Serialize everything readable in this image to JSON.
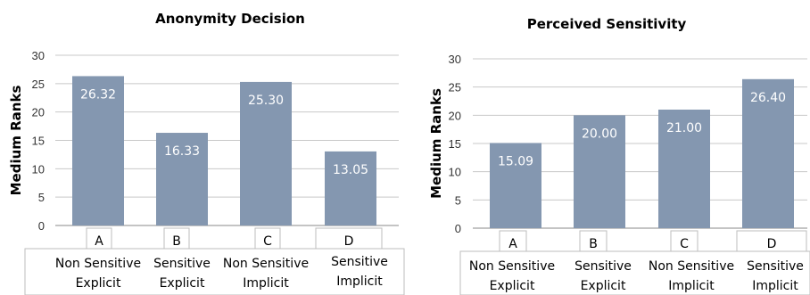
{
  "chart_data": [
    {
      "type": "bar",
      "title": "Anonymity Decision",
      "xlabel": "",
      "ylabel": "Medium Ranks",
      "ylim": [
        0,
        30
      ],
      "yticks": [
        0,
        5,
        10,
        15,
        20,
        25,
        30
      ],
      "grid": true,
      "categories": [
        {
          "letter": "A",
          "line1": "Non Sensitive",
          "line2": "Explicit"
        },
        {
          "letter": "B",
          "line1": "Sensitive",
          "line2": "Explicit"
        },
        {
          "letter": "C",
          "line1": "Non Sensitive",
          "line2": "Implicit"
        },
        {
          "letter": "D",
          "line1": "Sensitive",
          "line2": "Implicit"
        }
      ],
      "values": [
        26.32,
        16.33,
        25.3,
        13.05
      ],
      "value_labels": [
        "26.32",
        "16.33",
        "25.30",
        "13.05"
      ],
      "bar_color": "#8497b0"
    },
    {
      "type": "bar",
      "title": "Perceived Sensitivity",
      "xlabel": "",
      "ylabel": "Medium Ranks",
      "ylim": [
        0,
        30
      ],
      "yticks": [
        0,
        5,
        10,
        15,
        20,
        25,
        30
      ],
      "grid": true,
      "categories": [
        {
          "letter": "A",
          "line1": "Non Sensitive",
          "line2": "Explicit"
        },
        {
          "letter": "B",
          "line1": "Sensitive",
          "line2": "Explicit"
        },
        {
          "letter": "C",
          "line1": "Non Sensitive",
          "line2": "Implicit"
        },
        {
          "letter": "D",
          "line1": "Sensitive",
          "line2": "Implicit"
        }
      ],
      "values": [
        15.09,
        20.0,
        21.0,
        26.4
      ],
      "value_labels": [
        "15.09",
        "20.00",
        "21.00",
        "26.40"
      ],
      "bar_color": "#8497b0"
    }
  ]
}
